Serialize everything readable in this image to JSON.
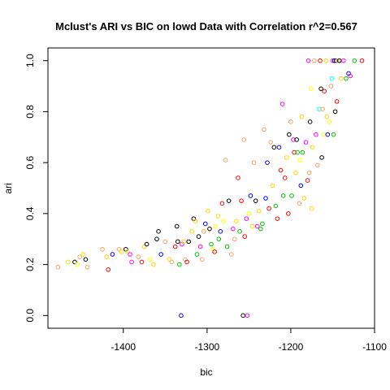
{
  "chart_data": {
    "type": "scatter",
    "title": "Mclust's ARI vs BIC on lowd Data with Correlation r^2=0.567",
    "xlabel": "bic",
    "ylabel": "ari",
    "xlim": [
      -1490,
      -1100
    ],
    "ylim": [
      -0.05,
      1.05
    ],
    "xticks": [
      -1400,
      -1300,
      -1200,
      -1100
    ],
    "xtick_labels": [
      "-1400",
      "-1300",
      "-1200",
      "-1100"
    ],
    "yticks": [
      0.0,
      0.2,
      0.4,
      0.6,
      0.8,
      1.0
    ],
    "ytick_labels": [
      "0.0",
      "0.2",
      "0.4",
      "0.6",
      "0.8",
      "1.0"
    ],
    "grid": false,
    "legend": "none",
    "points": [
      {
        "x": -1478,
        "y": 0.19,
        "color": "#f4a460"
      },
      {
        "x": -1466,
        "y": 0.21,
        "color": "#ffd700"
      },
      {
        "x": -1458,
        "y": 0.21,
        "color": "#000000"
      },
      {
        "x": -1455,
        "y": 0.2,
        "color": "#ffff00"
      },
      {
        "x": -1452,
        "y": 0.23,
        "color": "#f4a460"
      },
      {
        "x": -1448,
        "y": 0.24,
        "color": "#ffd700"
      },
      {
        "x": -1445,
        "y": 0.22,
        "color": "#000000"
      },
      {
        "x": -1443,
        "y": 0.19,
        "color": "#f4a460"
      },
      {
        "x": -1425,
        "y": 0.26,
        "color": "#f4a460"
      },
      {
        "x": -1420,
        "y": 0.23,
        "color": "#ffd700"
      },
      {
        "x": -1418,
        "y": 0.18,
        "color": "#ff0000"
      },
      {
        "x": -1413,
        "y": 0.24,
        "color": "#0000ff"
      },
      {
        "x": -1405,
        "y": 0.26,
        "color": "#f4a460"
      },
      {
        "x": -1402,
        "y": 0.25,
        "color": "#ffd700"
      },
      {
        "x": -1397,
        "y": 0.26,
        "color": "#000000"
      },
      {
        "x": -1395,
        "y": 0.25,
        "color": "#ffd700"
      },
      {
        "x": -1392,
        "y": 0.24,
        "color": "#ff00ff"
      },
      {
        "x": -1390,
        "y": 0.21,
        "color": "#ff00ff"
      },
      {
        "x": -1382,
        "y": 0.23,
        "color": "#f4a460"
      },
      {
        "x": -1378,
        "y": 0.21,
        "color": "#ff0000"
      },
      {
        "x": -1375,
        "y": 0.27,
        "color": "#ffd700"
      },
      {
        "x": -1372,
        "y": 0.28,
        "color": "#000000"
      },
      {
        "x": -1368,
        "y": 0.22,
        "color": "#ffff00"
      },
      {
        "x": -1364,
        "y": 0.2,
        "color": "#ffd700"
      },
      {
        "x": -1360,
        "y": 0.3,
        "color": "#000000"
      },
      {
        "x": -1358,
        "y": 0.33,
        "color": "#000000"
      },
      {
        "x": -1355,
        "y": 0.24,
        "color": "#0000ff"
      },
      {
        "x": -1350,
        "y": 0.29,
        "color": "#f4a460"
      },
      {
        "x": -1345,
        "y": 0.22,
        "color": "#ffd700"
      },
      {
        "x": -1342,
        "y": 0.21,
        "color": "#f4a460"
      },
      {
        "x": -1338,
        "y": 0.27,
        "color": "#ff0000"
      },
      {
        "x": -1336,
        "y": 0.35,
        "color": "#000000"
      },
      {
        "x": -1335,
        "y": 0.29,
        "color": "#000000"
      },
      {
        "x": -1333,
        "y": 0.2,
        "color": "#00c000"
      },
      {
        "x": -1331,
        "y": 0.0,
        "color": "#0000ff"
      },
      {
        "x": -1330,
        "y": 0.28,
        "color": "#ff00ff"
      },
      {
        "x": -1328,
        "y": 0.29,
        "color": "#ffd700"
      },
      {
        "x": -1326,
        "y": 0.22,
        "color": "#f4a460"
      },
      {
        "x": -1324,
        "y": 0.21,
        "color": "#ff0000"
      },
      {
        "x": -1322,
        "y": 0.29,
        "color": "#000000"
      },
      {
        "x": -1318,
        "y": 0.33,
        "color": "#ffd700"
      },
      {
        "x": -1316,
        "y": 0.38,
        "color": "#000000"
      },
      {
        "x": -1314,
        "y": 0.37,
        "color": "#ffd700"
      },
      {
        "x": -1312,
        "y": 0.24,
        "color": "#00c000"
      },
      {
        "x": -1310,
        "y": 0.31,
        "color": "#000000"
      },
      {
        "x": -1308,
        "y": 0.27,
        "color": "#ff00ff"
      },
      {
        "x": -1306,
        "y": 0.22,
        "color": "#f4a460"
      },
      {
        "x": -1304,
        "y": 0.33,
        "color": "#f4a460"
      },
      {
        "x": -1302,
        "y": 0.36,
        "color": "#0000ff"
      },
      {
        "x": -1299,
        "y": 0.41,
        "color": "#ffd700"
      },
      {
        "x": -1297,
        "y": 0.34,
        "color": "#000000"
      },
      {
        "x": -1295,
        "y": 0.28,
        "color": "#00c000"
      },
      {
        "x": -1293,
        "y": 0.26,
        "color": "#ffff00"
      },
      {
        "x": -1291,
        "y": 0.25,
        "color": "#ff0000"
      },
      {
        "x": -1290,
        "y": 0.35,
        "color": "#ffff00"
      },
      {
        "x": -1287,
        "y": 0.39,
        "color": "#ffd700"
      },
      {
        "x": -1286,
        "y": 0.3,
        "color": "#00c000"
      },
      {
        "x": -1284,
        "y": 0.33,
        "color": "#0000ff"
      },
      {
        "x": -1282,
        "y": 0.44,
        "color": "#ff0000"
      },
      {
        "x": -1280,
        "y": 0.37,
        "color": "#ffff00"
      },
      {
        "x": -1278,
        "y": 0.61,
        "color": "#f4a460"
      },
      {
        "x": -1276,
        "y": 0.27,
        "color": "#00c000"
      },
      {
        "x": -1274,
        "y": 0.45,
        "color": "#000000"
      },
      {
        "x": -1271,
        "y": 0.24,
        "color": "#f4a460"
      },
      {
        "x": -1269,
        "y": 0.34,
        "color": "#ff00ff"
      },
      {
        "x": -1267,
        "y": 0.3,
        "color": "#f4a460"
      },
      {
        "x": -1265,
        "y": 0.37,
        "color": "#ffd700"
      },
      {
        "x": -1263,
        "y": 0.54,
        "color": "#ff0000"
      },
      {
        "x": -1261,
        "y": 0.33,
        "color": "#00c000"
      },
      {
        "x": -1259,
        "y": 0.45,
        "color": "#ff0000"
      },
      {
        "x": -1257,
        "y": 0.0,
        "color": "#000000"
      },
      {
        "x": -1256,
        "y": 0.69,
        "color": "#f4a460"
      },
      {
        "x": -1255,
        "y": 0.31,
        "color": "#ff0000"
      },
      {
        "x": -1253,
        "y": 0.38,
        "color": "#ff00ff"
      },
      {
        "x": -1252,
        "y": 0.0,
        "color": "#ff00ff"
      },
      {
        "x": -1250,
        "y": 0.4,
        "color": "#ffff00"
      },
      {
        "x": -1248,
        "y": 0.47,
        "color": "#0000ff"
      },
      {
        "x": -1246,
        "y": 0.35,
        "color": "#ffd700"
      },
      {
        "x": -1244,
        "y": 0.6,
        "color": "#f4a460"
      },
      {
        "x": -1242,
        "y": 0.45,
        "color": "#000000"
      },
      {
        "x": -1240,
        "y": 0.35,
        "color": "#ff00ff"
      },
      {
        "x": -1238,
        "y": 0.41,
        "color": "#ffd700"
      },
      {
        "x": -1236,
        "y": 0.34,
        "color": "#00c000"
      },
      {
        "x": -1234,
        "y": 0.36,
        "color": "#00c000"
      },
      {
        "x": -1232,
        "y": 0.73,
        "color": "#f4a460"
      },
      {
        "x": -1230,
        "y": 0.46,
        "color": "#0000ff"
      },
      {
        "x": -1228,
        "y": 0.6,
        "color": "#0000ff"
      },
      {
        "x": -1226,
        "y": 0.42,
        "color": "#ff0000"
      },
      {
        "x": -1224,
        "y": 0.68,
        "color": "#f4a460"
      },
      {
        "x": -1222,
        "y": 0.51,
        "color": "#ffd700"
      },
      {
        "x": -1220,
        "y": 0.66,
        "color": "#000000"
      },
      {
        "x": -1218,
        "y": 0.43,
        "color": "#00c000"
      },
      {
        "x": -1216,
        "y": 0.38,
        "color": "#ff0000"
      },
      {
        "x": -1214,
        "y": 0.66,
        "color": "#0000ff"
      },
      {
        "x": -1212,
        "y": 0.57,
        "color": "#ff0000"
      },
      {
        "x": -1210,
        "y": 0.83,
        "color": "#ff00ff"
      },
      {
        "x": -1209,
        "y": 0.47,
        "color": "#00c000"
      },
      {
        "x": -1207,
        "y": 0.54,
        "color": "#ff0000"
      },
      {
        "x": -1205,
        "y": 0.62,
        "color": "#ffd700"
      },
      {
        "x": -1203,
        "y": 0.4,
        "color": "#ff0000"
      },
      {
        "x": -1202,
        "y": 0.71,
        "color": "#000000"
      },
      {
        "x": -1200,
        "y": 0.76,
        "color": "#f4a460"
      },
      {
        "x": -1199,
        "y": 0.47,
        "color": "#00c000"
      },
      {
        "x": -1197,
        "y": 0.69,
        "color": "#ff00ff"
      },
      {
        "x": -1196,
        "y": 0.64,
        "color": "#ff0000"
      },
      {
        "x": -1194,
        "y": 0.56,
        "color": "#ffd700"
      },
      {
        "x": -1193,
        "y": 0.69,
        "color": "#000000"
      },
      {
        "x": -1192,
        "y": 0.64,
        "color": "#00c000"
      },
      {
        "x": -1190,
        "y": 0.44,
        "color": "#f4a460"
      },
      {
        "x": -1189,
        "y": 0.61,
        "color": "#ffff00"
      },
      {
        "x": -1188,
        "y": 0.51,
        "color": "#0000ff"
      },
      {
        "x": -1187,
        "y": 0.78,
        "color": "#ffd700"
      },
      {
        "x": -1186,
        "y": 0.64,
        "color": "#00c000"
      },
      {
        "x": -1184,
        "y": 0.46,
        "color": "#ffd700"
      },
      {
        "x": -1182,
        "y": 0.68,
        "color": "#ff00ff"
      },
      {
        "x": -1180,
        "y": 0.53,
        "color": "#ff0000"
      },
      {
        "x": -1179,
        "y": 1.0,
        "color": "#ff00ff"
      },
      {
        "x": -1178,
        "y": 0.56,
        "color": "#f4a460"
      },
      {
        "x": -1177,
        "y": 0.76,
        "color": "#000000"
      },
      {
        "x": -1176,
        "y": 0.89,
        "color": "#ffff00"
      },
      {
        "x": -1175,
        "y": 0.42,
        "color": "#ffd700"
      },
      {
        "x": -1174,
        "y": 0.66,
        "color": "#ffd700"
      },
      {
        "x": -1172,
        "y": 1.0,
        "color": "#f4a460"
      },
      {
        "x": -1170,
        "y": 0.71,
        "color": "#ff00ff"
      },
      {
        "x": -1168,
        "y": 0.59,
        "color": "#f4a460"
      },
      {
        "x": -1166,
        "y": 0.81,
        "color": "#00ffff"
      },
      {
        "x": -1165,
        "y": 1.0,
        "color": "#ff0000"
      },
      {
        "x": -1164,
        "y": 0.89,
        "color": "#000000"
      },
      {
        "x": -1163,
        "y": 0.62,
        "color": "#000000"
      },
      {
        "x": -1162,
        "y": 0.81,
        "color": "#f4a460"
      },
      {
        "x": -1161,
        "y": 0.71,
        "color": "#ffff00"
      },
      {
        "x": -1160,
        "y": 0.88,
        "color": "#ff0000"
      },
      {
        "x": -1158,
        "y": 1.0,
        "color": "#ffd700"
      },
      {
        "x": -1157,
        "y": 0.78,
        "color": "#ffd700"
      },
      {
        "x": -1156,
        "y": 0.71,
        "color": "#0000ff"
      },
      {
        "x": -1154,
        "y": 0.76,
        "color": "#ffff00"
      },
      {
        "x": -1152,
        "y": 0.9,
        "color": "#f4a460"
      },
      {
        "x": -1151,
        "y": 0.93,
        "color": "#00ffff"
      },
      {
        "x": -1150,
        "y": 1.0,
        "color": "#ff00ff"
      },
      {
        "x": -1149,
        "y": 0.71,
        "color": "#00c000"
      },
      {
        "x": -1148,
        "y": 1.0,
        "color": "#000000"
      },
      {
        "x": -1147,
        "y": 0.8,
        "color": "#000000"
      },
      {
        "x": -1146,
        "y": 1.0,
        "color": "#0000ff"
      },
      {
        "x": -1145,
        "y": 0.84,
        "color": "#ff0000"
      },
      {
        "x": -1144,
        "y": 1.0,
        "color": "#ffd700"
      },
      {
        "x": -1142,
        "y": 1.0,
        "color": "#000000"
      },
      {
        "x": -1140,
        "y": 0.93,
        "color": "#ffd700"
      },
      {
        "x": -1137,
        "y": 1.0,
        "color": "#ff00ff"
      },
      {
        "x": -1134,
        "y": 0.93,
        "color": "#00c000"
      },
      {
        "x": -1131,
        "y": 0.95,
        "color": "#0000ff"
      },
      {
        "x": -1129,
        "y": 0.94,
        "color": "#ff00ff"
      },
      {
        "x": -1124,
        "y": 1.0,
        "color": "#00c000"
      },
      {
        "x": -1115,
        "y": 1.0,
        "color": "#ff0000"
      }
    ]
  }
}
